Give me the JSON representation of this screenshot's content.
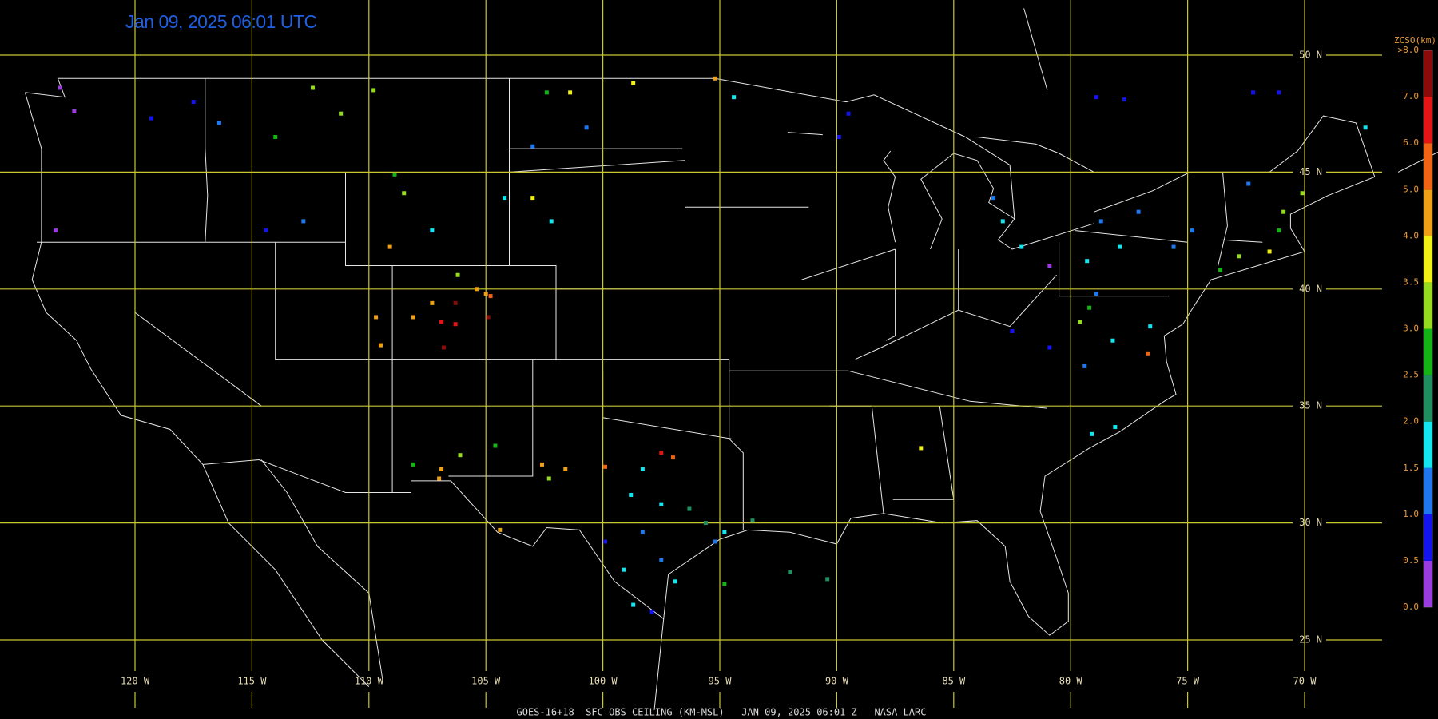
{
  "title": "Jan 09, 2025 06:01 UTC",
  "footer": "GOES-16+18  SFC OBS CEILING (KM-MSL)   JAN 09, 2025 06:01 Z   NASA LARC",
  "lon_ticks": [
    {
      "value": -120,
      "label": "120 W"
    },
    {
      "value": -115,
      "label": "115 W"
    },
    {
      "value": -110,
      "label": "110 W"
    },
    {
      "value": -105,
      "label": "105 W"
    },
    {
      "value": -100,
      "label": "100 W"
    },
    {
      "value": -95,
      "label": "95 W"
    },
    {
      "value": -90,
      "label": "90 W"
    },
    {
      "value": -85,
      "label": "85 W"
    },
    {
      "value": -80,
      "label": "80 W"
    },
    {
      "value": -75,
      "label": "75 W"
    },
    {
      "value": -70,
      "label": "70 W"
    }
  ],
  "lat_ticks": [
    {
      "value": 50,
      "label": "50 N"
    },
    {
      "value": 45,
      "label": "45 N"
    },
    {
      "value": 40,
      "label": "40 N"
    },
    {
      "value": 35,
      "label": "35 N"
    },
    {
      "value": 30,
      "label": "30 N"
    },
    {
      "value": 25,
      "label": "25 N"
    }
  ],
  "colorbar": {
    "title": "ZCSO(km)",
    "ticks": [
      {
        "value": 0,
        "label": "0.0"
      },
      {
        "value": 0.5,
        "label": "0.5"
      },
      {
        "value": 1,
        "label": "1.0"
      },
      {
        "value": 1.5,
        "label": "1.5"
      },
      {
        "value": 2,
        "label": "2.0"
      },
      {
        "value": 2.5,
        "label": "2.5"
      },
      {
        "value": 3,
        "label": "3.0"
      },
      {
        "value": 3.5,
        "label": "3.5"
      },
      {
        "value": 4,
        "label": "4.0"
      },
      {
        "value": 5,
        "label": "5.0"
      },
      {
        "value": 6,
        "label": "6.0"
      },
      {
        "value": 7,
        "label": "7.0"
      },
      {
        "value": 8,
        "label": ">8.0"
      }
    ],
    "colors": [
      "#9a3ce0",
      "#1414f0",
      "#1e78f0",
      "#14e6f0",
      "#1e9060",
      "#14b414",
      "#96dc1e",
      "#f0f014",
      "#f0a014",
      "#f06414",
      "#e61414",
      "#8c0a0a"
    ]
  },
  "stations": [
    [
      -123.2,
      48.6,
      0.3
    ],
    [
      -122.6,
      47.6,
      0.3
    ],
    [
      -123.4,
      42.5,
      0.3
    ],
    [
      -117.5,
      48,
      0.8
    ],
    [
      -119.3,
      47.3,
      0.8
    ],
    [
      -116.4,
      47.1,
      1.2
    ],
    [
      -112.4,
      48.6,
      3.0
    ],
    [
      -111.2,
      47.5,
      3.2
    ],
    [
      -114,
      46.5,
      2.6
    ],
    [
      -109.8,
      48.5,
      3.2
    ],
    [
      -114.4,
      42.5,
      0.9
    ],
    [
      -112.8,
      42.9,
      1.2
    ],
    [
      -108.9,
      44.9,
      2.6
    ],
    [
      -108.5,
      44.1,
      3.0
    ],
    [
      -107.3,
      42.5,
      1.6
    ],
    [
      -109.1,
      41.8,
      4.2
    ],
    [
      -104.2,
      43.9,
      1.6
    ],
    [
      -102.4,
      48.4,
      2.6
    ],
    [
      -101.4,
      48.4,
      3.8
    ],
    [
      -100.7,
      46.9,
      1.2
    ],
    [
      -98.7,
      48.8,
      3.8
    ],
    [
      -103,
      46.1,
      1.3
    ],
    [
      -102.2,
      42.9,
      1.6
    ],
    [
      -103,
      43.9,
      3.8
    ],
    [
      -106.2,
      40.6,
      3.3
    ],
    [
      -105.4,
      40,
      4.5
    ],
    [
      -105,
      39.8,
      4.4
    ],
    [
      -104.8,
      39.7,
      5.5
    ],
    [
      -107.3,
      39.4,
      4.3
    ],
    [
      -106.3,
      39.4,
      7.5
    ],
    [
      -108.1,
      38.8,
      4.5
    ],
    [
      -106.9,
      38.6,
      6.0
    ],
    [
      -106.3,
      38.5,
      6.5
    ],
    [
      -104.9,
      38.8,
      7.5
    ],
    [
      -109.7,
      38.8,
      4.5
    ],
    [
      -109.5,
      37.6,
      4.3
    ],
    [
      -106.8,
      37.5,
      7.6
    ],
    [
      -108.1,
      32.5,
      2.7
    ],
    [
      -106.9,
      32.3,
      4.3
    ],
    [
      -106.1,
      32.9,
      3.0
    ],
    [
      -104.6,
      33.3,
      2.6
    ],
    [
      -102.6,
      32.5,
      4.0
    ],
    [
      -102.3,
      31.9,
      3.3
    ],
    [
      -101.6,
      32.3,
      4.0
    ],
    [
      -104.4,
      29.7,
      4.0
    ],
    [
      -107,
      31.9,
      4.6
    ],
    [
      -99.9,
      32.4,
      5.0
    ],
    [
      -97.5,
      33,
      6.5
    ],
    [
      -97,
      32.8,
      5.5
    ],
    [
      -98.3,
      32.3,
      1.6
    ],
    [
      -98.8,
      31.2,
      1.7
    ],
    [
      -97.5,
      30.8,
      1.8
    ],
    [
      -96.3,
      30.6,
      2.0
    ],
    [
      -98.3,
      29.6,
      1.2
    ],
    [
      -99.9,
      29.2,
      0.8
    ],
    [
      -99.1,
      28,
      1.5
    ],
    [
      -97.5,
      28.4,
      1.1
    ],
    [
      -96.9,
      27.5,
      1.8
    ],
    [
      -98.7,
      26.5,
      1.7
    ],
    [
      -97.9,
      26.2,
      0.9
    ],
    [
      -95.6,
      30,
      2.3
    ],
    [
      -94.8,
      29.6,
      1.7
    ],
    [
      -95.2,
      29.2,
      1.4
    ],
    [
      -93.6,
      30.1,
      2.2
    ],
    [
      -94.8,
      27.4,
      2.6
    ],
    [
      -92,
      27.9,
      2.3
    ],
    [
      -90.4,
      27.6,
      2.4
    ],
    [
      -86.4,
      33.2,
      3.8
    ],
    [
      -89.5,
      47.5,
      0.8
    ],
    [
      -89.9,
      46.5,
      0.9
    ],
    [
      -83.3,
      43.9,
      1.3
    ],
    [
      -82.9,
      42.9,
      1.6
    ],
    [
      -82.1,
      41.8,
      1.7
    ],
    [
      -80.9,
      41,
      0.4
    ],
    [
      -79.6,
      38.6,
      3.3
    ],
    [
      -79.2,
      39.2,
      2.6
    ],
    [
      -82.5,
      38.2,
      0.7
    ],
    [
      -80.9,
      37.5,
      0.8
    ],
    [
      -79.4,
      36.7,
      1.3
    ],
    [
      -78.2,
      37.8,
      1.5
    ],
    [
      -76.6,
      38.4,
      1.7
    ],
    [
      -78.9,
      39.8,
      1.1
    ],
    [
      -76.7,
      37.25,
      5.5
    ],
    [
      -78.7,
      42.9,
      1.4
    ],
    [
      -77.1,
      43.3,
      1.2
    ],
    [
      -77.9,
      41.8,
      1.5
    ],
    [
      -79.3,
      41.2,
      1.7
    ],
    [
      -75.6,
      41.8,
      1.1
    ],
    [
      -74.8,
      42.5,
      1.3
    ],
    [
      -73.6,
      40.8,
      2.8
    ],
    [
      -72.8,
      41.4,
      3.2
    ],
    [
      -71.5,
      41.6,
      3.8
    ],
    [
      -71.1,
      42.5,
      2.8
    ],
    [
      -70.9,
      43.3,
      3.2
    ],
    [
      -70.1,
      44.1,
      3.0
    ],
    [
      -72.4,
      44.5,
      1.4
    ],
    [
      -67.4,
      46.9,
      1.5
    ],
    [
      -78.9,
      48.2,
      0.8
    ],
    [
      -77.7,
      48.1,
      0.9
    ],
    [
      -72.2,
      48.4,
      0.9
    ],
    [
      -71.1,
      48.4,
      0.8
    ],
    [
      -79.1,
      33.8,
      1.7
    ],
    [
      -78.1,
      34.1,
      1.6
    ],
    [
      -95.2,
      49,
      4.0
    ],
    [
      -94.4,
      48.2,
      1.7
    ]
  ]
}
